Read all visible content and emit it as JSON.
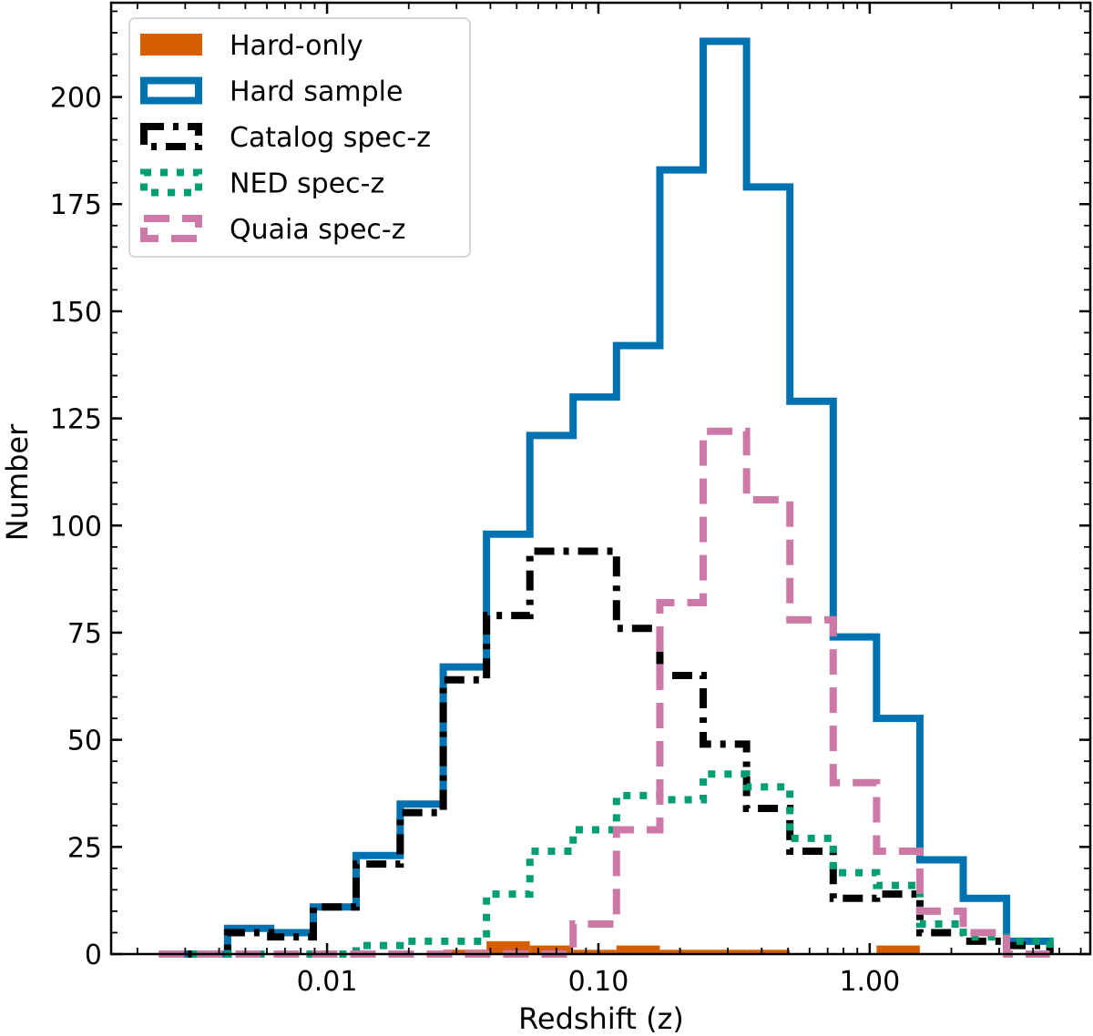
{
  "chart_data": {
    "type": "histogram-step",
    "title": "",
    "xlabel": "Redshift (z)",
    "ylabel": "Number",
    "xscale": "log",
    "xlim": [
      0.0016,
      6.5
    ],
    "ylim": [
      0,
      222
    ],
    "grid": false,
    "legend_position": "top-left",
    "bin_edges": [
      0.0024,
      0.0043,
      0.0062,
      0.0089,
      0.0128,
      0.0186,
      0.0268,
      0.0387,
      0.0559,
      0.0807,
      0.1166,
      0.1685,
      0.2434,
      0.3516,
      0.5079,
      0.7337,
      1.0598,
      1.531,
      2.2115,
      3.1946,
      4.6146
    ],
    "xticks": [
      {
        "value": 0.01,
        "label": "0.01"
      },
      {
        "value": 0.1,
        "label": "0.10"
      },
      {
        "value": 1,
        "label": "1.00"
      }
    ],
    "yticks": [
      {
        "value": 0,
        "label": "0"
      },
      {
        "value": 25,
        "label": "25"
      },
      {
        "value": 50,
        "label": "50"
      },
      {
        "value": 75,
        "label": "75"
      },
      {
        "value": 100,
        "label": "100"
      },
      {
        "value": 125,
        "label": "125"
      },
      {
        "value": 150,
        "label": "150"
      },
      {
        "value": 175,
        "label": "175"
      },
      {
        "value": 200,
        "label": "200"
      }
    ],
    "series": [
      {
        "name": "Hard-only",
        "style": "filled",
        "color": "#d55e00",
        "values": [
          0,
          0,
          0,
          0,
          0,
          0,
          1,
          3,
          2,
          1,
          2,
          1,
          1,
          1,
          0,
          0,
          2,
          0,
          0,
          0
        ]
      },
      {
        "name": "Hard sample",
        "style": "solid",
        "color": "#0072b2",
        "values": [
          0,
          6,
          5,
          11,
          23,
          35,
          67,
          98,
          121,
          130,
          142,
          183,
          213,
          179,
          129,
          74,
          55,
          22,
          13,
          3
        ]
      },
      {
        "name": "Catalog spec-z",
        "style": "dashdot",
        "color": "#000000",
        "values": [
          0,
          5,
          4,
          11,
          21,
          33,
          64,
          79,
          94,
          94,
          76,
          65,
          49,
          34,
          24,
          13,
          14,
          5,
          3,
          2
        ]
      },
      {
        "name": "NED spec-z",
        "style": "dotted",
        "color": "#009e73",
        "values": [
          0,
          0,
          0,
          0,
          2,
          3,
          3,
          14,
          24,
          29,
          37,
          36,
          42,
          39,
          27,
          19,
          16,
          7,
          4,
          3
        ]
      },
      {
        "name": "Quaia spec-z",
        "style": "dashed",
        "color": "#cc79a7",
        "values": [
          0,
          0,
          0,
          0,
          0,
          0,
          0,
          0,
          0,
          7,
          29,
          82,
          122,
          106,
          78,
          40,
          24,
          10,
          5,
          0
        ]
      }
    ]
  }
}
